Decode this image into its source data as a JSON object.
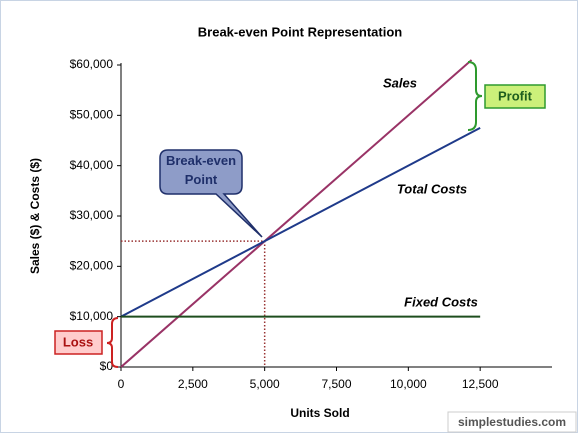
{
  "chart_data": {
    "type": "line",
    "title": "Break-even Point Representation",
    "x_label": "Units Sold",
    "y_label": "Sales ($) & Costs ($)",
    "xlim": [
      0,
      15000
    ],
    "ylim": [
      0,
      60000
    ],
    "xticks": [
      0,
      {
        "value": 2500,
        "label": "2,500"
      },
      {
        "value": 5000,
        "label": "5,000"
      },
      {
        "value": 7500,
        "label": "7,500"
      },
      {
        "value": 10000,
        "label": "10,000"
      },
      {
        "value": 12500,
        "label": "12,500"
      }
    ],
    "yticks": [
      {
        "value": 0,
        "label": "$0"
      },
      {
        "value": 10000,
        "label": "$10,000"
      },
      {
        "value": 20000,
        "label": "$20,000"
      },
      {
        "value": 30000,
        "label": "$30,000"
      },
      {
        "value": 40000,
        "label": "$40,000"
      },
      {
        "value": 50000,
        "label": "$50,000"
      },
      {
        "value": 60000,
        "label": "$60,000"
      }
    ],
    "series": [
      {
        "name": "Sales",
        "color": "#993366",
        "x": [
          0,
          12200
        ],
        "values": [
          0,
          61000
        ]
      },
      {
        "name": "Total Costs",
        "color": "#1f3a8a",
        "x": [
          0,
          12500
        ],
        "values": [
          10000,
          47500
        ]
      },
      {
        "name": "Fixed Costs",
        "color": "#1e4d1e",
        "x": [
          0,
          12500
        ],
        "values": [
          10000,
          10000
        ]
      }
    ],
    "break_even": {
      "label": "Break-even Point",
      "x": 5000,
      "y": 25000
    },
    "annotations": {
      "profit": "Profit",
      "loss": "Loss"
    },
    "watermark": "simplestudies.com"
  }
}
